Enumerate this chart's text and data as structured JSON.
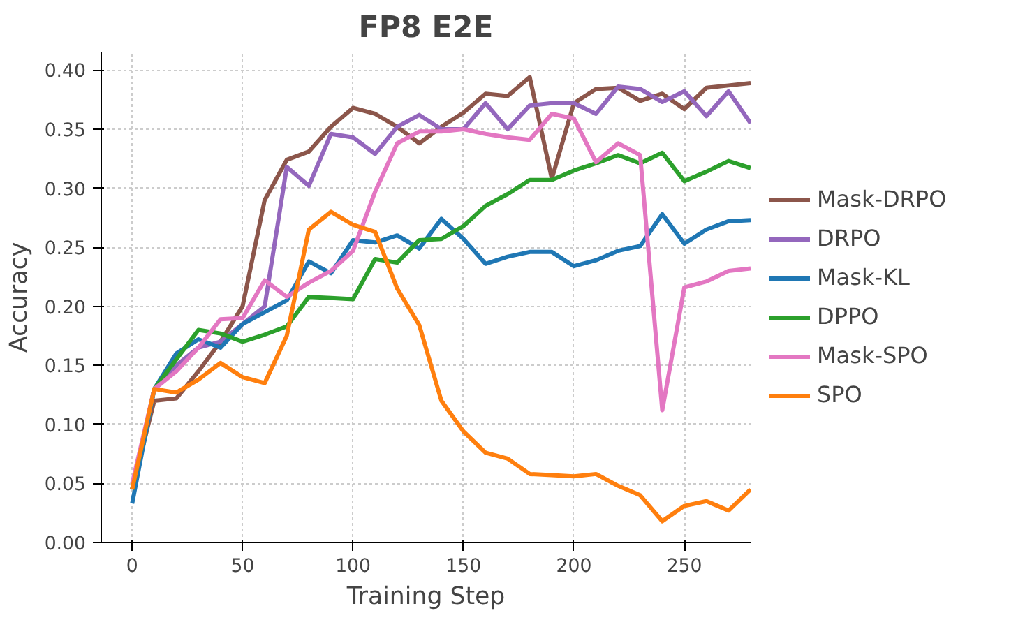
{
  "chart_data": {
    "type": "line",
    "title": "FP8 E2E",
    "xlabel": "Training Step",
    "ylabel": "Accuracy",
    "x": [
      0,
      10,
      20,
      30,
      40,
      50,
      60,
      70,
      80,
      90,
      100,
      110,
      120,
      130,
      140,
      150,
      160,
      170,
      180,
      190,
      200,
      210,
      220,
      230,
      240,
      250,
      260,
      270,
      280
    ],
    "xlim": [
      -14,
      280
    ],
    "ylim": [
      0,
      0.415
    ],
    "xticks": [
      0,
      50,
      100,
      150,
      200,
      250
    ],
    "yticks": [
      {
        "value": 0,
        "label": "0.00"
      },
      {
        "value": 0.05,
        "label": "0.05"
      },
      {
        "value": 0.1,
        "label": "0.10"
      },
      {
        "value": 0.15,
        "label": "0.15"
      },
      {
        "value": 0.2,
        "label": "0.20"
      },
      {
        "value": 0.25,
        "label": "0.25"
      },
      {
        "value": 0.3,
        "label": "0.30"
      },
      {
        "value": 0.35,
        "label": "0.35"
      },
      {
        "value": 0.4,
        "label": "0.40"
      }
    ],
    "grid": true,
    "legend": "right",
    "line_style": "solid",
    "marker": "none",
    "series": [
      {
        "name": "Mask-DRPO",
        "color": "#8c564b",
        "values": [
          0.045,
          0.12,
          0.122,
          0.145,
          0.17,
          0.2,
          0.29,
          0.324,
          0.331,
          0.352,
          0.368,
          0.363,
          0.352,
          0.338,
          0.352,
          0.364,
          0.38,
          0.378,
          0.394,
          0.308,
          0.372,
          0.384,
          0.385,
          0.374,
          0.38,
          0.367,
          0.385,
          0.387,
          0.389
        ]
      },
      {
        "name": "DRPO",
        "color": "#9467bd",
        "values": [
          0.045,
          0.13,
          0.15,
          0.165,
          0.17,
          0.185,
          0.2,
          0.318,
          0.302,
          0.346,
          0.343,
          0.329,
          0.352,
          0.362,
          0.35,
          0.35,
          0.372,
          0.35,
          0.37,
          0.372,
          0.372,
          0.363,
          0.386,
          0.384,
          0.373,
          0.382,
          0.361,
          0.382,
          0.355
        ]
      },
      {
        "name": "Mask-KL",
        "color": "#1f77b4",
        "values": [
          0.033,
          0.13,
          0.16,
          0.172,
          0.165,
          0.185,
          0.195,
          0.205,
          0.238,
          0.228,
          0.256,
          0.254,
          0.26,
          0.249,
          0.274,
          0.257,
          0.236,
          0.242,
          0.246,
          0.246,
          0.234,
          0.239,
          0.247,
          0.251,
          0.278,
          0.253,
          0.265,
          0.272,
          0.273
        ]
      },
      {
        "name": "DPPO",
        "color": "#2ca02c",
        "values": [
          0.045,
          0.13,
          0.155,
          0.18,
          0.177,
          0.17,
          0.176,
          0.183,
          0.208,
          0.207,
          0.206,
          0.24,
          0.237,
          0.256,
          0.257,
          0.268,
          0.285,
          0.295,
          0.307,
          0.307,
          0.315,
          0.321,
          0.328,
          0.321,
          0.33,
          0.306,
          0.314,
          0.323,
          0.317
        ]
      },
      {
        "name": "Mask-SPO",
        "color": "#e377c2",
        "values": [
          0.05,
          0.13,
          0.145,
          0.165,
          0.189,
          0.19,
          0.222,
          0.208,
          0.22,
          0.23,
          0.247,
          0.297,
          0.338,
          0.348,
          0.348,
          0.35,
          0.346,
          0.343,
          0.341,
          0.363,
          0.359,
          0.322,
          0.338,
          0.328,
          0.112,
          0.216,
          0.221,
          0.23,
          0.232
        ]
      },
      {
        "name": "SPO",
        "color": "#ff7f0e",
        "values": [
          0.045,
          0.13,
          0.127,
          0.138,
          0.152,
          0.14,
          0.135,
          0.175,
          0.265,
          0.28,
          0.269,
          0.263,
          0.215,
          0.184,
          0.12,
          0.094,
          0.076,
          0.071,
          0.058,
          0.057,
          0.056,
          0.058,
          0.048,
          0.04,
          0.018,
          0.031,
          0.035,
          0.027,
          0.045
        ]
      }
    ]
  }
}
